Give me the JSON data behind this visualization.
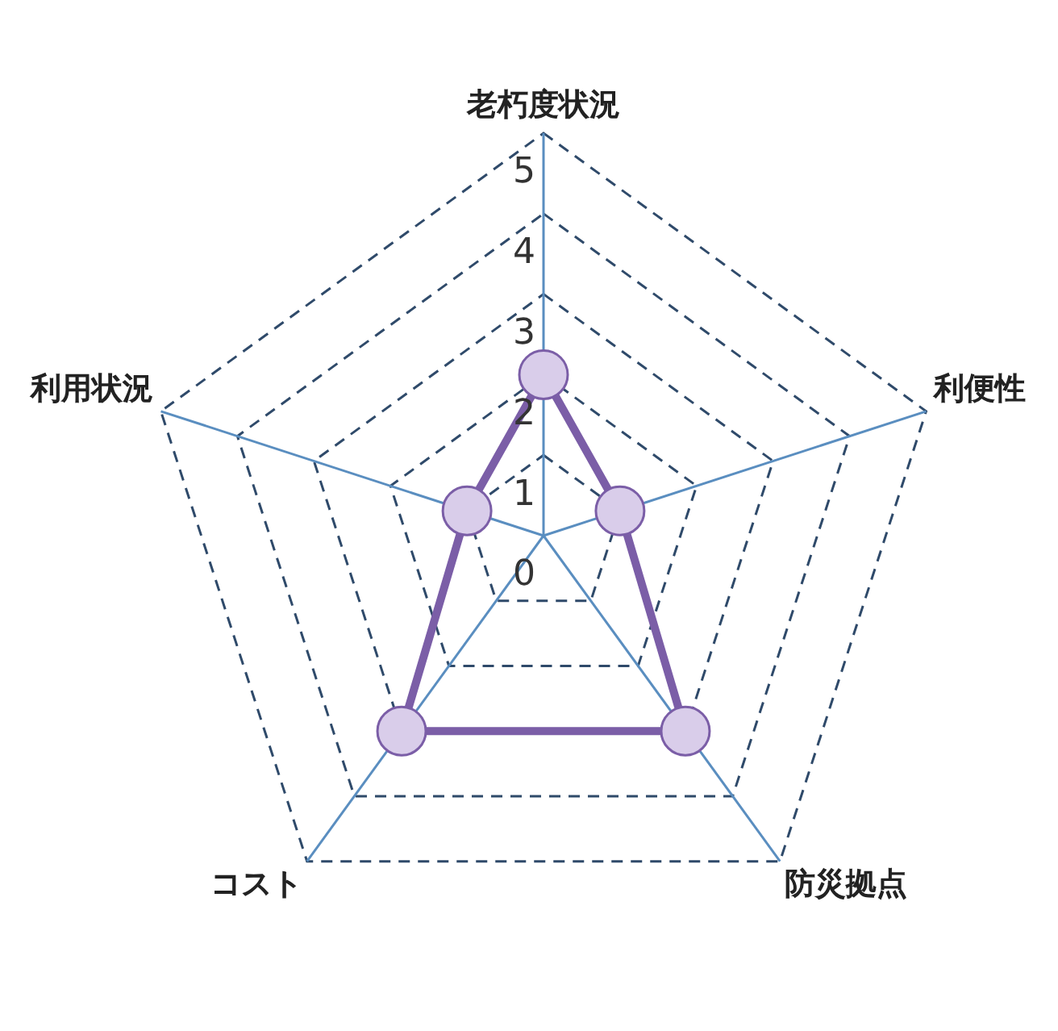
{
  "chart_data": {
    "type": "radar",
    "categories": [
      "老朽度状況",
      "利便性",
      "防災拠点",
      "コスト",
      "利用状況"
    ],
    "series": [
      {
        "color": "#7b5ea7",
        "values": [
          2,
          1,
          3,
          3,
          1
        ]
      }
    ],
    "ylim": [
      0,
      5
    ],
    "yticks": [
      0,
      1,
      2,
      3,
      4,
      5
    ],
    "grid": true,
    "legend": false,
    "marker": "circle",
    "line_style": "solid"
  }
}
